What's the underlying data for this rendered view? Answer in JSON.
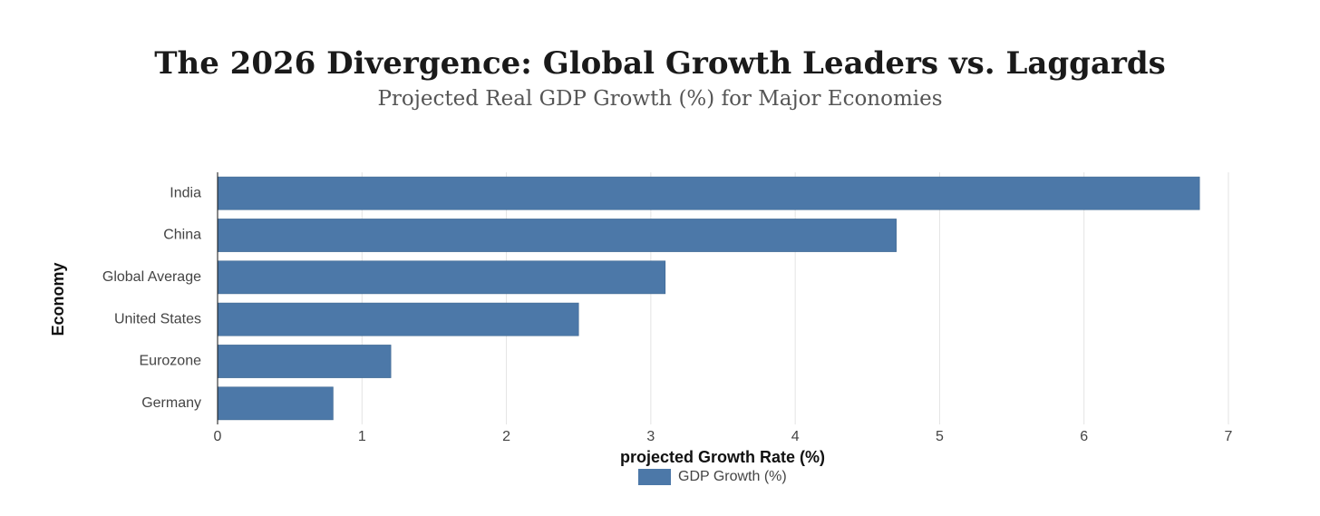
{
  "chart_data": {
    "type": "bar",
    "orientation": "horizontal",
    "title": "The 2026 Divergence: Global Growth Leaders vs. Laggards",
    "subtitle": "Projected Real GDP Growth (%) for Major Economies",
    "x_label": "projected Growth Rate (%)",
    "y_label": "Economy",
    "categories": [
      "India",
      "China",
      "Global Average",
      "United States",
      "Eurozone",
      "Germany"
    ],
    "series": [
      {
        "name": "GDP Growth (%)",
        "color": "#4c78a8",
        "values": [
          6.8,
          4.7,
          3.1,
          2.5,
          1.2,
          0.8
        ]
      }
    ],
    "xlim": [
      0,
      7
    ],
    "xticks": [
      0,
      1,
      2,
      3,
      4,
      5,
      6,
      7
    ],
    "grid": true,
    "legend": "bottom"
  }
}
